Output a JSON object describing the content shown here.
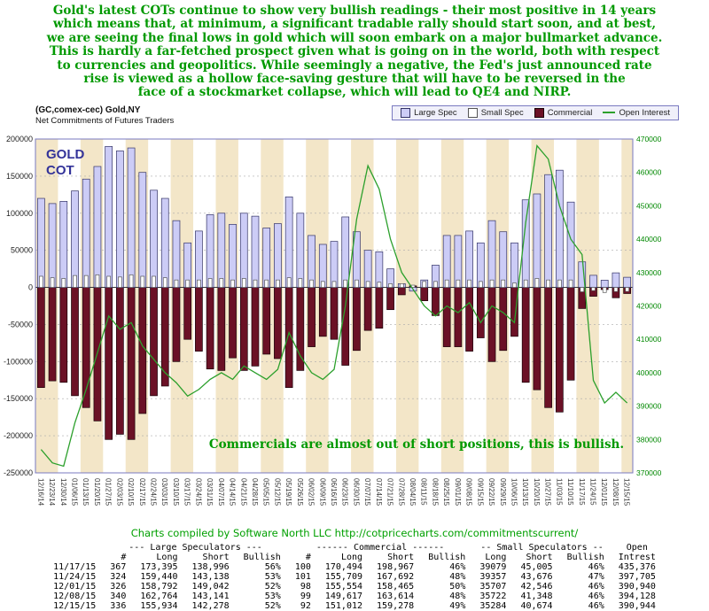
{
  "header": {
    "lines": [
      "Gold's latest COTs continue to show very bullish readings - their most positive in 14 years",
      "which means that, at minimum, a significant tradable rally should start soon, and at best,",
      "we are seeing the final lows in gold which will soon embark on a major bullmarket advance.",
      "This is hardly a far-fetched prospect given what is going on in the world, both with respect",
      "to currencies and geopolitics. While seemingly a negative, the Fed's just announced rate",
      "rise is viewed as a hollow face-saving gesture that will have to be reversed in the",
      "face of a stockmarket collapse, which will lead to QE4 and NIRP."
    ]
  },
  "chart": {
    "title_line1": "(GC,comex-cec) Gold,NY",
    "title_line2": "Net Commitments of Futures Traders",
    "watermark_line1": "GOLD",
    "watermark_line2": "COT",
    "annotation": "Commercials are almost out of short positions, this is bullish.",
    "legend": [
      {
        "label": "Large Spec",
        "swatch": "large_spec"
      },
      {
        "label": "Small Spec",
        "swatch": "small_spec"
      },
      {
        "label": "Commercial",
        "swatch": "commercial"
      },
      {
        "label": "Open Interest",
        "swatch": "open_interest"
      }
    ]
  },
  "chart_data": {
    "type": "bar",
    "title": "(GC,comex-cec) Gold,NY - Net Commitments of Futures Traders",
    "x": [
      "12/16/14",
      "12/23/14",
      "12/30/14",
      "01/06/15",
      "01/13/15",
      "01/20/15",
      "01/27/15",
      "02/03/15",
      "02/10/15",
      "02/17/15",
      "02/24/15",
      "03/03/15",
      "03/10/15",
      "03/17/15",
      "03/24/15",
      "03/31/15",
      "04/07/15",
      "04/14/15",
      "04/21/15",
      "04/28/15",
      "05/05/15",
      "05/12/15",
      "05/19/15",
      "05/26/15",
      "06/02/15",
      "06/09/15",
      "06/16/15",
      "06/23/15",
      "06/30/15",
      "07/07/15",
      "07/14/15",
      "07/21/15",
      "07/28/15",
      "08/04/15",
      "08/11/15",
      "08/18/15",
      "08/25/15",
      "09/01/15",
      "09/08/15",
      "09/15/15",
      "09/22/15",
      "09/29/15",
      "10/06/15",
      "10/13/15",
      "10/20/15",
      "10/27/15",
      "11/03/15",
      "11/10/15",
      "11/17/15",
      "11/24/15",
      "12/01/15",
      "12/08/15",
      "12/15/15"
    ],
    "series": [
      {
        "name": "Large Spec",
        "axis": "left",
        "kind": "bar",
        "values": [
          120000,
          113000,
          116000,
          130000,
          146000,
          163000,
          190000,
          184000,
          188000,
          155000,
          131000,
          120000,
          90000,
          60000,
          76000,
          98000,
          100000,
          85000,
          100000,
          96000,
          80000,
          86000,
          122000,
          100000,
          70000,
          58000,
          62000,
          95000,
          75000,
          50000,
          48000,
          25000,
          5000,
          -5000,
          10000,
          30000,
          70000,
          70000,
          76000,
          60000,
          90000,
          75000,
          60000,
          118000,
          126000,
          152000,
          158000,
          115000,
          34399,
          16302,
          9750,
          19623,
          13656
        ]
      },
      {
        "name": "Commercial",
        "axis": "left",
        "kind": "bar",
        "values": [
          -135000,
          -126000,
          -128000,
          -146000,
          -162000,
          -180000,
          -205000,
          -198000,
          -205000,
          -170000,
          -146000,
          -133000,
          -100000,
          -70000,
          -86000,
          -110000,
          -112000,
          -95000,
          -112000,
          -106000,
          -90000,
          -96000,
          -135000,
          -112000,
          -80000,
          -66000,
          -70000,
          -105000,
          -85000,
          -58000,
          -55000,
          -30000,
          -10000,
          2000,
          -18000,
          -38000,
          -80000,
          -80000,
          -86000,
          -68000,
          -100000,
          -85000,
          -66000,
          -128000,
          -138000,
          -162000,
          -168000,
          -125000,
          -28473,
          -11983,
          -2911,
          -13997,
          -8266
        ]
      },
      {
        "name": "Small Spec",
        "axis": "left",
        "kind": "bar",
        "values": [
          15000,
          13000,
          12000,
          16000,
          16000,
          17000,
          15000,
          14000,
          17000,
          15000,
          15000,
          13000,
          10000,
          10000,
          10000,
          12000,
          12000,
          10000,
          12000,
          10000,
          10000,
          10000,
          13000,
          12000,
          10000,
          8000,
          8000,
          10000,
          10000,
          8000,
          7000,
          5000,
          5000,
          3000,
          8000,
          8000,
          10000,
          10000,
          10000,
          8000,
          10000,
          10000,
          6000,
          10000,
          12000,
          10000,
          10000,
          10000,
          -5926,
          -4319,
          -6839,
          -5626,
          -5390
        ]
      },
      {
        "name": "Open Interest",
        "axis": "right",
        "kind": "line",
        "values": [
          377000,
          373000,
          372000,
          385000,
          395000,
          406000,
          417000,
          413000,
          415000,
          408000,
          404000,
          400000,
          397000,
          393000,
          395000,
          398000,
          400000,
          398000,
          402000,
          400000,
          398000,
          401000,
          412000,
          405000,
          400000,
          398000,
          401000,
          420000,
          446000,
          462000,
          455000,
          440000,
          430000,
          425000,
          420000,
          417000,
          420000,
          418000,
          421000,
          415000,
          420000,
          418000,
          415000,
          445000,
          468000,
          464000,
          450000,
          440000,
          435376,
          397705,
          390940,
          394128,
          390944
        ]
      }
    ],
    "left_axis": {
      "min": -250000,
      "max": 200000,
      "tick": 50000
    },
    "right_axis": {
      "min": 370000,
      "max": 470000,
      "tick": 10000
    },
    "grid": true,
    "legend_position": "top-right",
    "colors": {
      "large_spec": "#ccccf6",
      "large_spec_border": "#333366",
      "small_spec": "#ffffff",
      "small_spec_border": "#555555",
      "commercial": "#6b1126",
      "commercial_border": "#1a0208",
      "open_interest": "#2ca02c",
      "band": "#f3e6c8",
      "grid": "#aaaaaa",
      "frame": "#7a7ac0",
      "left_label": "#222222",
      "right_label": "#008800",
      "annotation": "#009900",
      "watermark": "#333399"
    }
  },
  "credit": "Charts compiled by Software North LLC  http://cotpricecharts.com/commitmentscurrent/",
  "table": {
    "group_headers": {
      "large": "--- Large Speculators ---",
      "commercial": "------ Commercial ------",
      "small": "-- Small Speculators --",
      "open": "Open"
    },
    "columns": [
      "#",
      "Long",
      "Short",
      "Bullish",
      "#",
      "Long",
      "Short",
      "Bullish",
      "Long",
      "Short",
      "Bullish",
      "Intrest"
    ],
    "rows": [
      [
        "11/17/15",
        "367",
        "173,395",
        "138,996",
        "56%",
        "100",
        "170,494",
        "198,967",
        "46%",
        "39079",
        "45,005",
        "46%",
        "435,376"
      ],
      [
        "11/24/15",
        "324",
        "159,440",
        "143,138",
        "53%",
        "101",
        "155,709",
        "167,692",
        "48%",
        "39357",
        "43,676",
        "47%",
        "397,705"
      ],
      [
        "12/01/15",
        "326",
        "158,792",
        "149,042",
        "52%",
        "98",
        "155,554",
        "158,465",
        "50%",
        "35707",
        "42,546",
        "46%",
        "390,940"
      ],
      [
        "12/08/15",
        "340",
        "162,764",
        "143,141",
        "53%",
        "99",
        "149,617",
        "163,614",
        "48%",
        "35722",
        "41,348",
        "46%",
        "394,128"
      ],
      [
        "12/15/15",
        "336",
        "155,934",
        "142,278",
        "52%",
        "92",
        "151,012",
        "159,278",
        "49%",
        "35284",
        "40,674",
        "46%",
        "390,944"
      ]
    ]
  }
}
